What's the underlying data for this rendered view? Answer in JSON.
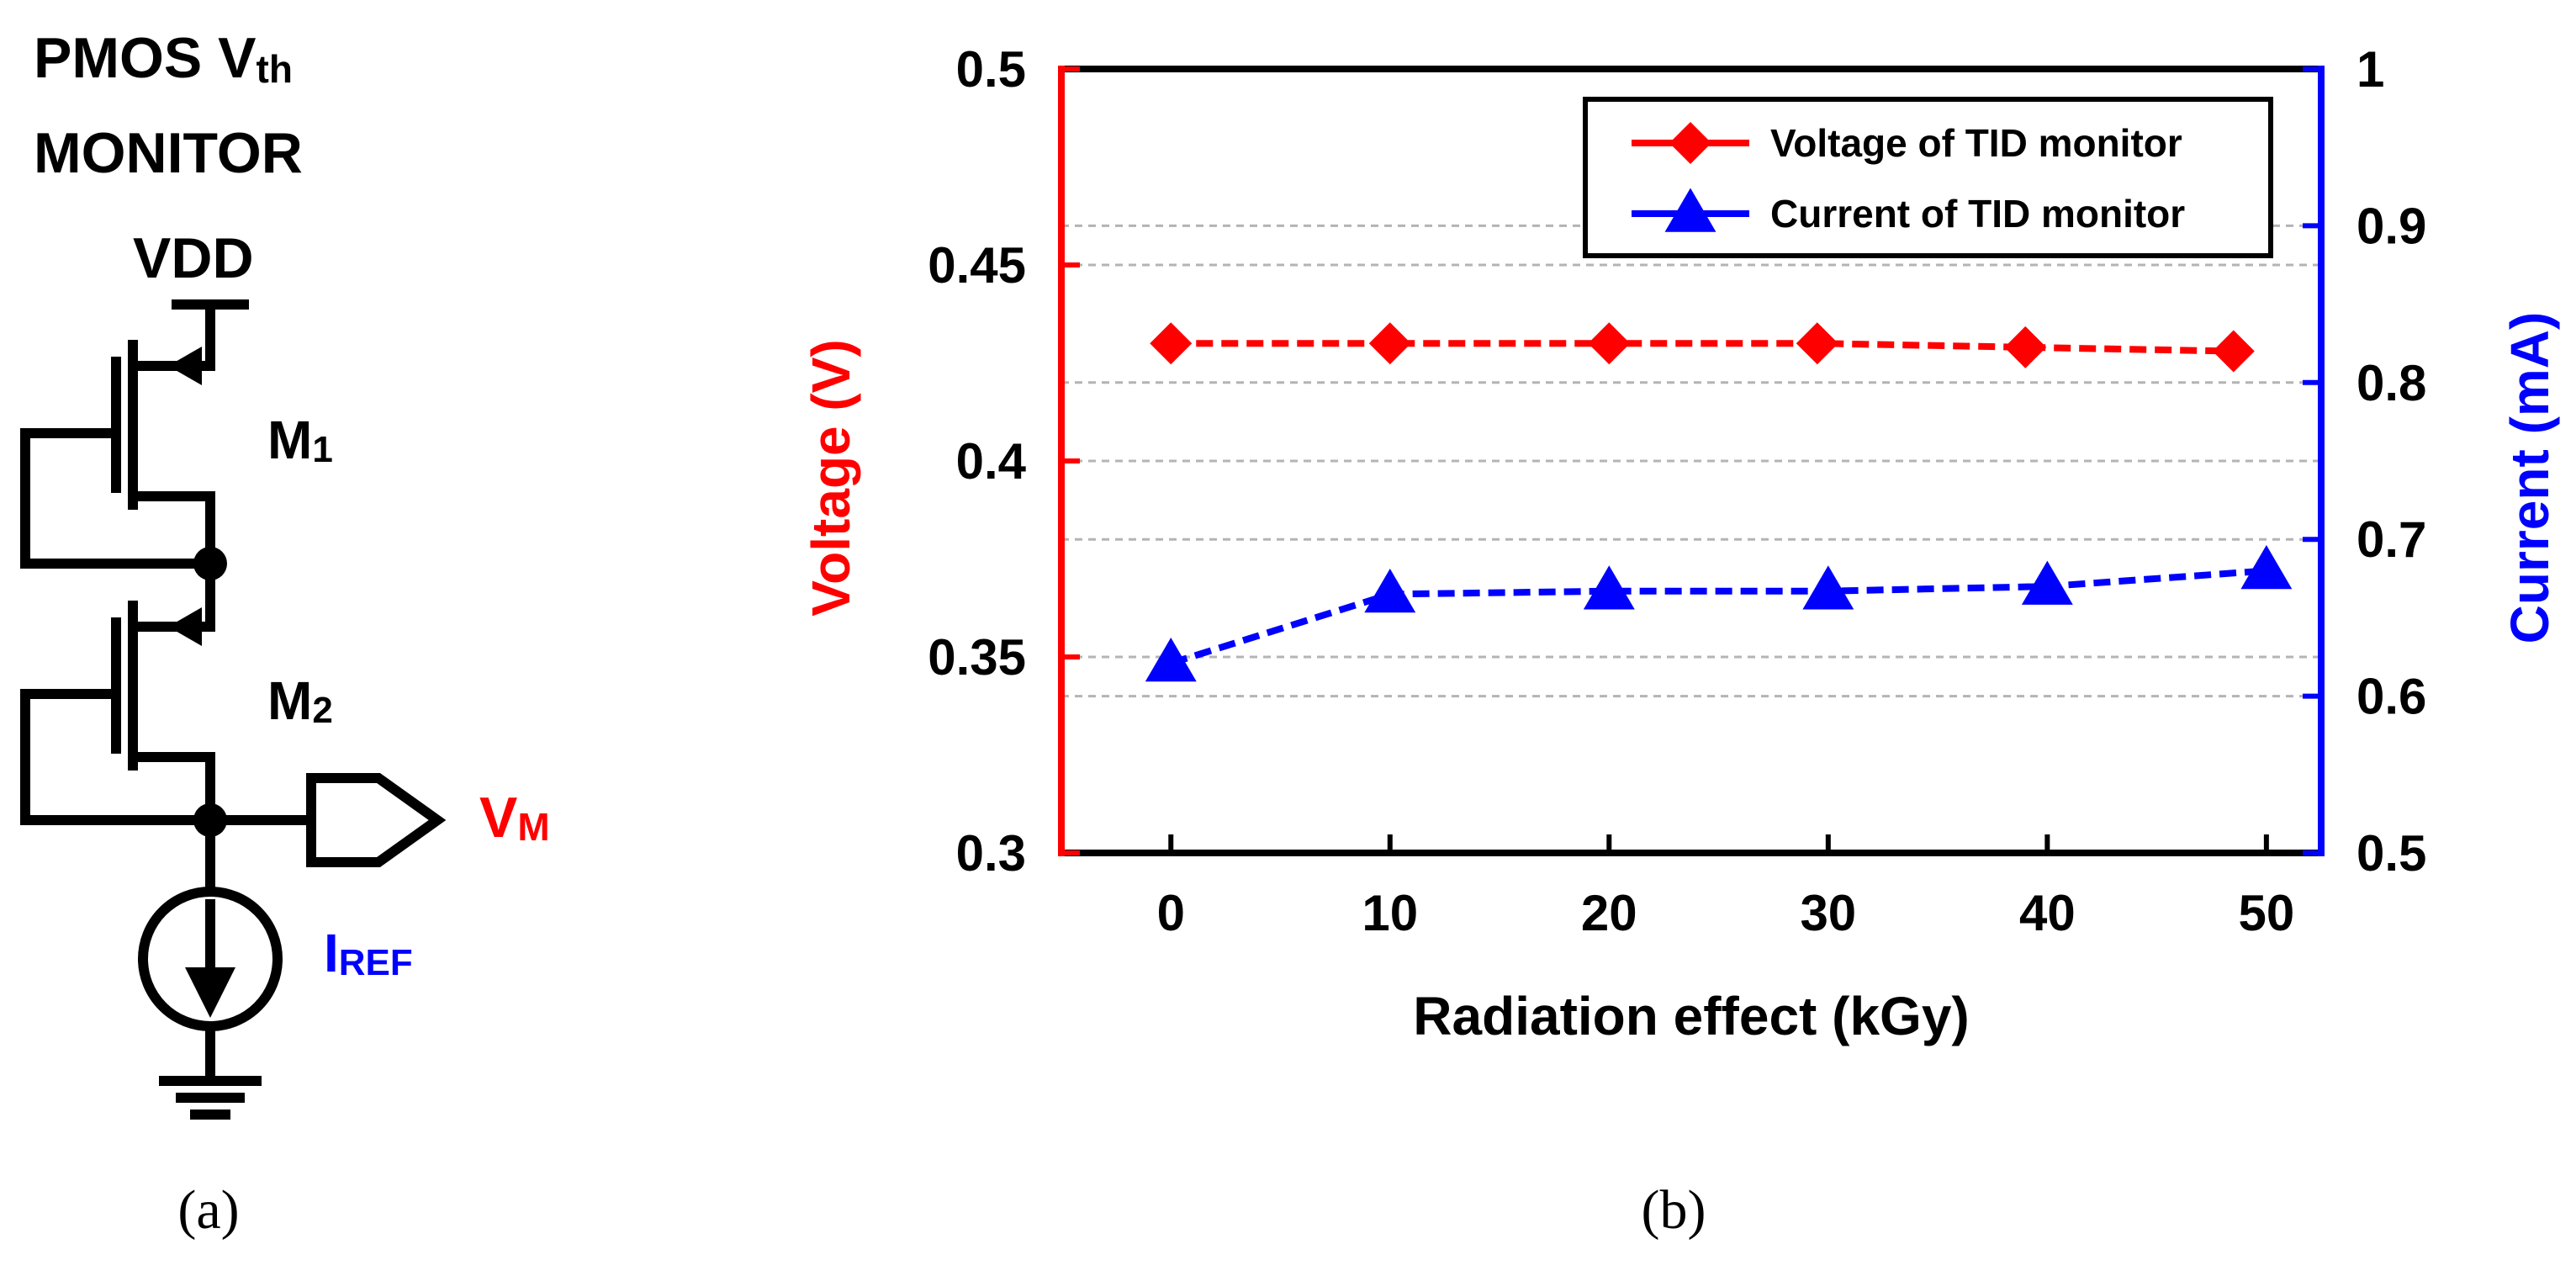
{
  "panel_a": {
    "title_line1": "PMOS V",
    "title_sub": "th",
    "title_line2": "MONITOR",
    "vdd": "VDD",
    "m1_main": "M",
    "m1_sub": "1",
    "m2_main": "M",
    "m2_sub": "2",
    "vm_main": "V",
    "vm_sub": "M",
    "iref_main": "I",
    "iref_sub": "REF",
    "caption": "(a)",
    "colors": {
      "vm": "#ff0000",
      "iref": "#0000ff",
      "wire": "#000000"
    }
  },
  "panel_b": {
    "caption": "(b)"
  },
  "chart_data": {
    "type": "line",
    "x": [
      0,
      10,
      20,
      30,
      40,
      50
    ],
    "xticks": [
      "0",
      "10",
      "20",
      "30",
      "40",
      "50"
    ],
    "xlabel": "Radiation effect (kGy)",
    "xlim": [
      -5,
      52.5
    ],
    "ylabel_left": "Voltage (V)",
    "ylabel_right": "Current (mA)",
    "ylim_left": [
      0.3,
      0.5
    ],
    "ylim_right": [
      0.5,
      1.0
    ],
    "yticks_left": [
      "0.3",
      "0.35",
      "0.4",
      "0.45",
      "0.5"
    ],
    "yticks_right": [
      "0.5",
      "0.6",
      "0.7",
      "0.8",
      "0.9",
      "1"
    ],
    "grid": true,
    "legend_position": "top-right",
    "series": [
      {
        "name": "Voltage of TID monitor",
        "axis": "left",
        "marker": "diamond",
        "color": "#ff0000",
        "x": [
          0,
          10,
          20,
          29.5,
          39,
          48.5
        ],
        "values": [
          0.43,
          0.43,
          0.43,
          0.43,
          0.429,
          0.428
        ]
      },
      {
        "name": "Current of TID monitor",
        "axis": "right",
        "marker": "triangle",
        "color": "#0000ff",
        "x": [
          0,
          10,
          20,
          30,
          40,
          50
        ],
        "values": [
          0.621,
          0.665,
          0.667,
          0.667,
          0.67,
          0.68
        ]
      }
    ]
  }
}
